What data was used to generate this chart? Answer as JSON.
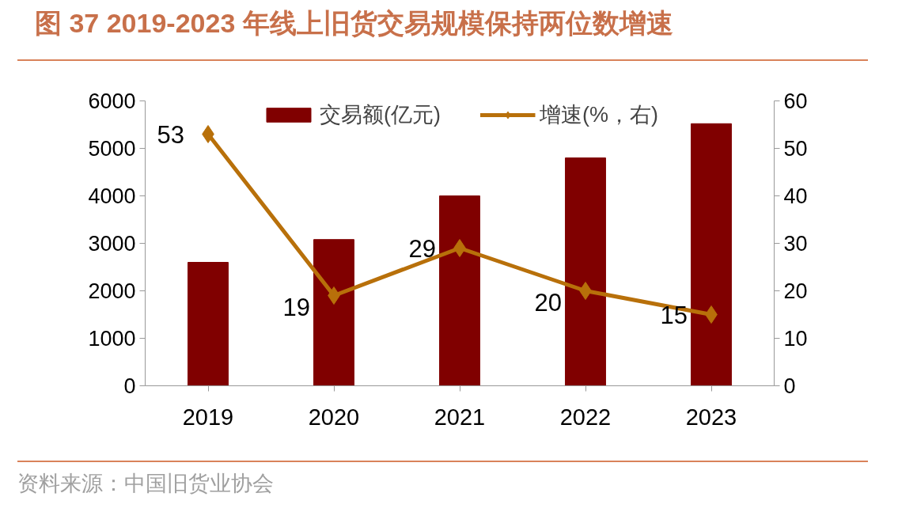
{
  "chart_data": {
    "type": "bar",
    "title": "图 37 2019-2023 年线上旧货交易规模保持两位数增速",
    "categories": [
      "2019",
      "2020",
      "2021",
      "2022",
      "2023"
    ],
    "series": [
      {
        "name": "交易额(亿元)",
        "color": "#800000",
        "values": [
          2600,
          3080,
          4000,
          4800,
          5520
        ]
      },
      {
        "name": "增速(%，右)",
        "type": "line",
        "axis": "y2",
        "color": "#b8700a",
        "marker": "diamond",
        "data_labels": true,
        "values": [
          53,
          19,
          29,
          20,
          15
        ]
      }
    ],
    "ylim": [
      0,
      6000
    ],
    "yticks": [
      0,
      1000,
      2000,
      3000,
      4000,
      5000,
      6000
    ],
    "y2lim": [
      0,
      60
    ],
    "y2ticks": [
      0,
      10,
      20,
      30,
      40,
      50,
      60
    ],
    "grid": false,
    "legend": "top",
    "annotations": [
      "资料来源：中国旧货业协会"
    ]
  }
}
